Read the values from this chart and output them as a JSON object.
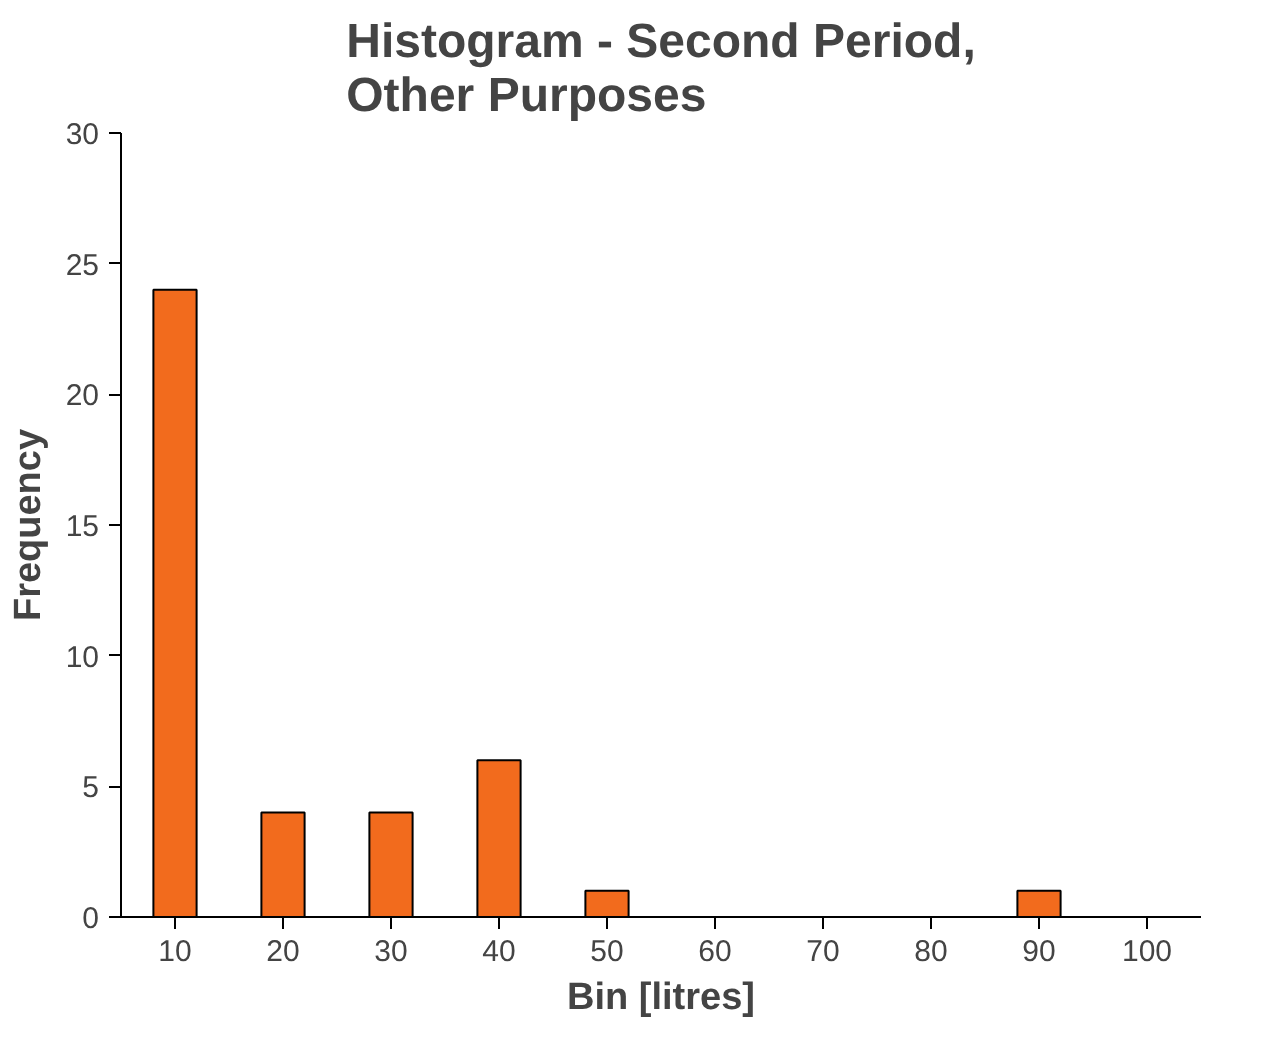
{
  "chart_data": {
    "type": "bar",
    "title": "Histogram - Second Period, Other Purposes",
    "xlabel": "Bin [litres]",
    "ylabel": "Frequency",
    "categories": [
      "10",
      "20",
      "30",
      "40",
      "50",
      "60",
      "70",
      "80",
      "90",
      "100"
    ],
    "values": [
      24,
      4,
      4,
      6,
      1,
      0,
      0,
      0,
      1,
      0
    ],
    "color": "#f26b1d",
    "ylim": [
      0,
      30
    ],
    "yticks": [
      0,
      5,
      10,
      15,
      20,
      25,
      30
    ],
    "grid": false
  }
}
